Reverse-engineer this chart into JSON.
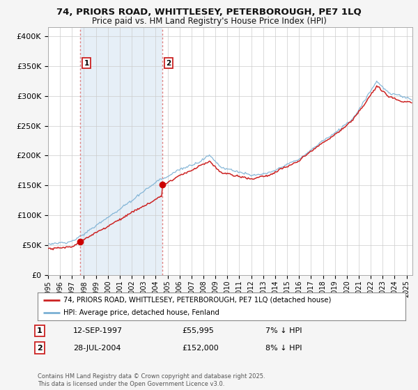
{
  "title_line1": "74, PRIORS ROAD, WHITTLESEY, PETERBOROUGH, PE7 1LQ",
  "title_line2": "Price paid vs. HM Land Registry's House Price Index (HPI)",
  "ylabel_ticks": [
    "£0",
    "£50K",
    "£100K",
    "£150K",
    "£200K",
    "£250K",
    "£300K",
    "£350K",
    "£400K"
  ],
  "ytick_values": [
    0,
    50000,
    100000,
    150000,
    200000,
    250000,
    300000,
    350000,
    400000
  ],
  "ylim": [
    0,
    415000
  ],
  "xlim_start": 1995.0,
  "xlim_end": 2025.5,
  "xticks": [
    1995,
    1996,
    1997,
    1998,
    1999,
    2000,
    2001,
    2002,
    2003,
    2004,
    2005,
    2006,
    2007,
    2008,
    2009,
    2010,
    2011,
    2012,
    2013,
    2014,
    2015,
    2016,
    2017,
    2018,
    2019,
    2020,
    2021,
    2022,
    2023,
    2024,
    2025
  ],
  "purchase_dates": [
    1997.7,
    2004.57
  ],
  "purchase_prices": [
    55995,
    152000
  ],
  "purchase_labels": [
    "1",
    "2"
  ],
  "vline_color": "#e08080",
  "shade_color": "#dce9f5",
  "dot_color": "#cc0000",
  "hpi_line_color": "#7ab0d4",
  "price_line_color": "#cc2222",
  "legend_label_red": "74, PRIORS ROAD, WHITTLESEY, PETERBOROUGH, PE7 1LQ (detached house)",
  "legend_label_blue": "HPI: Average price, detached house, Fenland",
  "annotation1_label": "1",
  "annotation1_date": "12-SEP-1997",
  "annotation1_price": "£55,995",
  "annotation1_hpi": "7% ↓ HPI",
  "annotation2_label": "2",
  "annotation2_date": "28-JUL-2004",
  "annotation2_price": "£152,000",
  "annotation2_hpi": "8% ↓ HPI",
  "footer": "Contains HM Land Registry data © Crown copyright and database right 2025.\nThis data is licensed under the Open Government Licence v3.0.",
  "bg_color": "#f5f5f5",
  "plot_bg_color": "#ffffff"
}
